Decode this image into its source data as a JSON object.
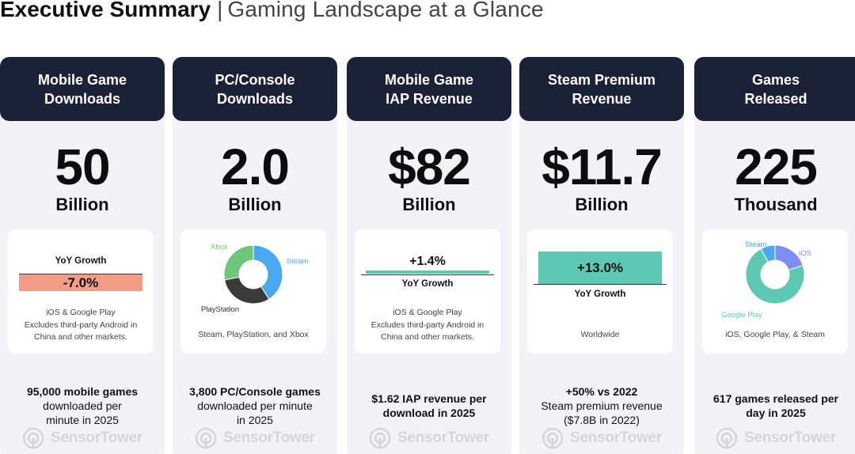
{
  "header": {
    "title": "Executive Summary",
    "separator": "|",
    "subtitle": "Gaming Landscape at a Glance"
  },
  "colors": {
    "header_bg": "#1b2136",
    "column_bg": "#f3f3f7",
    "negative": "#f29b86",
    "positive": "#5ec9b3",
    "donut_blue": "#4aa8f0",
    "donut_dark": "#3a3a3a",
    "donut_green": "#6cc77a",
    "donut_teal": "#5ec9b3",
    "donut_purple": "#7d8ff0"
  },
  "columns": [
    {
      "header": "Mobile Game\nDownloads",
      "value": "50",
      "unit": "Billion",
      "card": {
        "yoy_label": "YoY Growth",
        "yoy_value": "-7.0%",
        "note": "iOS & Google Play\nExcludes third-party Android in\nChina and other markets."
      },
      "foot_bold": "95,000 mobile games",
      "foot_rest": "downloaded per\nminute in 2025",
      "watermark": "SensorTower"
    },
    {
      "header": "PC/Console\nDownloads",
      "value": "2.0",
      "unit": "Billion",
      "card": {
        "note": "Steam, PlayStation, and Xbox"
      },
      "foot_bold": "3,800 PC/Console games",
      "foot_rest": "downloaded per minute\nin 2025",
      "watermark": "SensorTower"
    },
    {
      "header": "Mobile Game\nIAP Revenue",
      "value": "$82",
      "unit": "Billion",
      "card": {
        "yoy_value": "+1.4%",
        "yoy_label": "YoY Growth",
        "note": "iOS & Google Play\nExcludes third-party Android in\nChina and other markets."
      },
      "foot_bold": "$1.62 IAP revenue per\ndownload in 2025",
      "foot_rest": "",
      "watermark": "SensorTower"
    },
    {
      "header": "Steam Premium\nRevenue",
      "value": "$11.7",
      "unit": "Billion",
      "card": {
        "yoy_value": "+13.0%",
        "yoy_label": "YoY Growth",
        "note": "Worldwide"
      },
      "foot_bold": "+50% vs 2022",
      "foot_rest": "Steam premium revenue\n($7.8B in 2022)",
      "watermark": "SensorTower"
    },
    {
      "header": "Games\nReleased",
      "value": "225",
      "unit": "Thousand",
      "card": {
        "note": "iOS, Google Play, & Steam"
      },
      "foot_bold": "617 games released per\nday in 2025",
      "foot_rest": "",
      "watermark": "SensorTower"
    }
  ],
  "chart_data": [
    {
      "type": "bar",
      "categories": [
        "YoY Growth"
      ],
      "values": [
        -7.0
      ],
      "data_labels": [
        "-7.0%"
      ],
      "xlabel": "",
      "ylabel": ""
    },
    {
      "type": "pie",
      "donut": true,
      "categories": [
        "Steam",
        "PlayStation",
        "Xbox"
      ],
      "values": [
        41,
        31,
        28
      ],
      "labels": [
        "Steam",
        "PlayStation",
        "Xbox"
      ]
    },
    {
      "type": "bar",
      "categories": [
        "YoY Growth"
      ],
      "values": [
        1.4
      ],
      "data_labels": [
        "+1.4%"
      ],
      "xlabel": "",
      "ylabel": ""
    },
    {
      "type": "bar",
      "categories": [
        "YoY Growth"
      ],
      "values": [
        13.0
      ],
      "data_labels": [
        "+13.0%"
      ],
      "xlabel": "",
      "ylabel": ""
    },
    {
      "type": "pie",
      "donut": true,
      "categories": [
        "iOS",
        "Google Play",
        "Steam"
      ],
      "values": [
        20,
        72,
        8
      ],
      "labels": [
        "iOS",
        "Google Play",
        "Steam"
      ]
    }
  ]
}
